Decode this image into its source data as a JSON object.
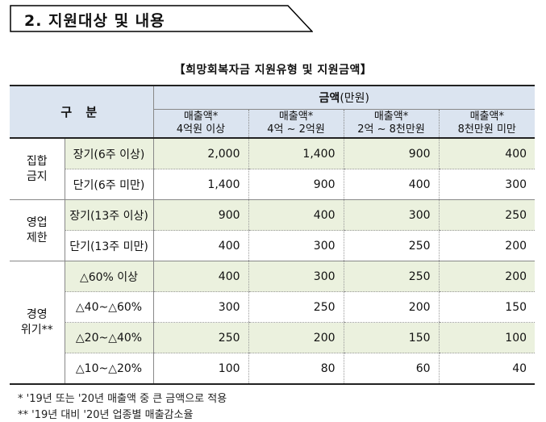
{
  "section_title": "2. 지원대상 및 내용",
  "table_title": "【희망회복자금 지원유형 및 지원금액】",
  "header": {
    "category": "구 분",
    "amount_bold": "금액",
    "amount_unit": "(만원)",
    "columns": [
      {
        "line1": "매출액*",
        "line2": "4억원 이상"
      },
      {
        "line1": "매출액*",
        "line2": "4억 ~ 2억원"
      },
      {
        "line1": "매출액*",
        "line2": "2억 ~ 8천만원"
      },
      {
        "line1": "매출액*",
        "line2": "8천만원 미만"
      }
    ]
  },
  "groups": [
    {
      "category_line1": "집합",
      "category_line2": "금지",
      "rows": [
        {
          "label": "장기(6주 이상)",
          "values": [
            "2,000",
            "1,400",
            "900",
            "400"
          ]
        },
        {
          "label": "단기(6주 미만)",
          "values": [
            "1,400",
            "900",
            "400",
            "300"
          ]
        }
      ]
    },
    {
      "category_line1": "영업",
      "category_line2": "제한",
      "rows": [
        {
          "label": "장기(13주 이상)",
          "values": [
            "900",
            "400",
            "300",
            "250"
          ]
        },
        {
          "label": "단기(13주 미만)",
          "values": [
            "400",
            "300",
            "250",
            "200"
          ]
        }
      ]
    },
    {
      "category_line1": "경영",
      "category_line2": "위기**",
      "rows": [
        {
          "label": "△60% 이상",
          "values": [
            "400",
            "300",
            "250",
            "200"
          ]
        },
        {
          "label": "△40~△60%",
          "values": [
            "300",
            "250",
            "200",
            "150"
          ]
        },
        {
          "label": "△20~△40%",
          "values": [
            "250",
            "200",
            "150",
            "100"
          ]
        },
        {
          "label": "△10~△20%",
          "values": [
            "100",
            "80",
            "60",
            "40"
          ]
        }
      ]
    }
  ],
  "footnotes": [
    "* '19년 또는 '20년 매출액 중 큰 금액으로 적용",
    "** '19년 대비 '20년 업종별 매출감소율"
  ]
}
